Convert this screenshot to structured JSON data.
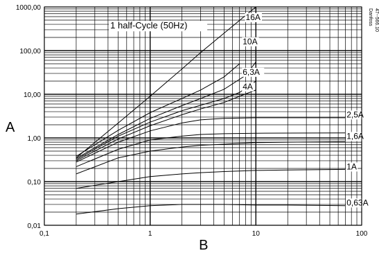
{
  "chart_data": {
    "type": "line",
    "title": "",
    "xlabel": "B",
    "ylabel": "A",
    "xscale": "log",
    "yscale": "log",
    "xlim": [
      0.1,
      100
    ],
    "ylim": [
      0.01,
      1000
    ],
    "grid": true,
    "x_ticks": [
      "0,1",
      "1",
      "10",
      "100"
    ],
    "y_ticks": [
      "0,01",
      "0,10",
      "1,00",
      "10,00",
      "100,00",
      "1000,00"
    ],
    "side_note": [
      "Danfoss",
      "47--566.10"
    ],
    "annotation": "1 half-Cycle (50Hz)",
    "series": [
      {
        "name": "16A",
        "x": [
          0.2,
          0.5,
          1,
          2,
          3,
          5,
          10
        ],
        "y": [
          0.35,
          2.2,
          9,
          38,
          90,
          250,
          1000
        ]
      },
      {
        "name": "",
        "x": [
          0.2,
          0.5,
          1,
          2,
          3,
          5,
          7
        ],
        "y": [
          0.38,
          1.5,
          3.8,
          8,
          12.5,
          25,
          50
        ]
      },
      {
        "name": "10A",
        "x": [
          0.2,
          0.5,
          1,
          2,
          3,
          5,
          8,
          10
        ],
        "y": [
          0.34,
          1.2,
          2.8,
          5.5,
          8,
          13,
          27,
          55
        ]
      },
      {
        "name": "6,3A",
        "x": [
          0.2,
          0.5,
          1,
          2,
          3,
          5,
          7,
          10
        ],
        "y": [
          0.32,
          1.1,
          2.3,
          4.2,
          5.6,
          8,
          11,
          20
        ]
      },
      {
        "name": "4A",
        "x": [
          0.2,
          0.5,
          1,
          2,
          3,
          5,
          7,
          10
        ],
        "y": [
          0.3,
          0.95,
          1.9,
          3.4,
          4.6,
          6.5,
          9,
          12.5
        ]
      },
      {
        "name": "2,5A",
        "x": [
          0.2,
          0.5,
          1,
          2,
          3,
          5,
          10,
          20,
          70
        ],
        "y": [
          0.28,
          0.8,
          1.45,
          2.2,
          2.6,
          2.8,
          2.9,
          2.9,
          2.9
        ]
      },
      {
        "name": "1,6A",
        "x": [
          0.2,
          0.5,
          1,
          2,
          3,
          5,
          10,
          20,
          70
        ],
        "y": [
          0.22,
          0.55,
          0.9,
          1.1,
          1.2,
          1.25,
          1.28,
          1.29,
          1.3
        ]
      },
      {
        "name": "",
        "x": [
          0.2,
          0.5,
          1,
          2,
          3,
          5,
          10,
          20,
          70
        ],
        "y": [
          0.15,
          0.35,
          0.5,
          0.62,
          0.68,
          0.72,
          0.78,
          0.8,
          0.82
        ]
      },
      {
        "name": "1A",
        "x": [
          0.2,
          0.5,
          1,
          2,
          3,
          5,
          10,
          20,
          70
        ],
        "y": [
          0.07,
          0.1,
          0.13,
          0.15,
          0.16,
          0.17,
          0.18,
          0.185,
          0.19
        ]
      },
      {
        "name": "0,63A",
        "x": [
          0.2,
          0.5,
          1,
          2,
          3,
          5,
          10,
          20,
          70
        ],
        "y": [
          0.018,
          0.024,
          0.028,
          0.03,
          0.03,
          0.03,
          0.029,
          0.029,
          0.028
        ]
      }
    ]
  }
}
